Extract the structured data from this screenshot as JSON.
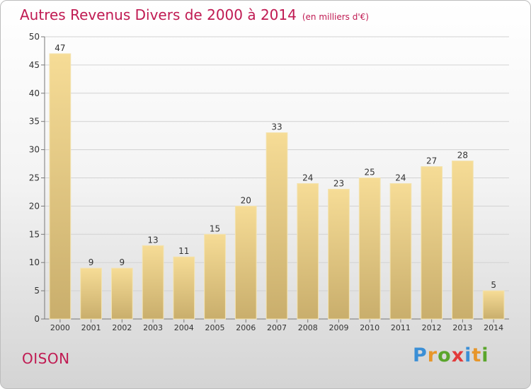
{
  "title": "Autres Revenus Divers de 2000 à 2014",
  "subtitle": "(en milliers d'€)",
  "location": "OISON",
  "brand": {
    "letters": [
      "P",
      "r",
      "o",
      "x",
      "i",
      "t",
      "i"
    ],
    "colors": [
      "#3b8fd6",
      "#e7962a",
      "#5aa52c",
      "#e23a3a",
      "#3b8fd6",
      "#e7962a",
      "#5aa52c"
    ]
  },
  "chart_data": {
    "type": "bar",
    "categories": [
      "2000",
      "2001",
      "2002",
      "2003",
      "2004",
      "2005",
      "2006",
      "2007",
      "2008",
      "2009",
      "2010",
      "2011",
      "2012",
      "2013",
      "2014"
    ],
    "values": [
      47,
      9,
      9,
      13,
      11,
      15,
      20,
      33,
      24,
      23,
      25,
      24,
      27,
      28,
      5
    ],
    "title": "Autres Revenus Divers de 2000 à 2014",
    "subtitle": "(en milliers d'€)",
    "xlabel": "",
    "ylabel": "",
    "ylim": [
      0,
      50
    ],
    "yticks": [
      0,
      5,
      10,
      15,
      20,
      25,
      30,
      35,
      40,
      45,
      50
    ],
    "grid": true,
    "data_labels": true,
    "bar_color": "#e8cf86"
  }
}
